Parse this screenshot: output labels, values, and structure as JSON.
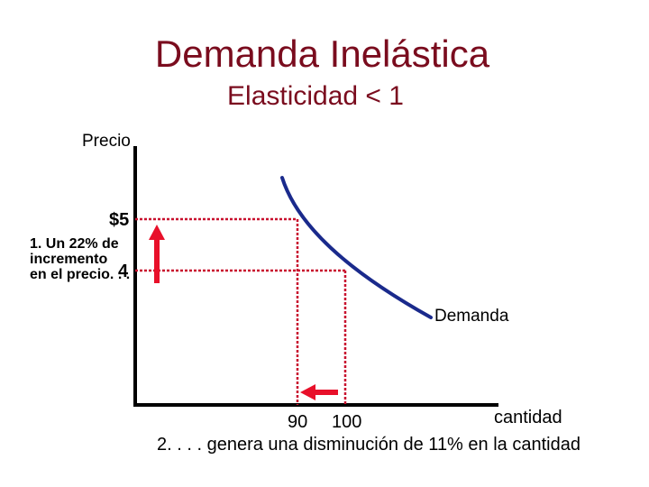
{
  "title": "Demanda Inelástica",
  "subtitle": "Elasticidad < 1",
  "axes": {
    "y_label": "Precio",
    "x_label": "cantidad"
  },
  "price_labels": {
    "high": "$5",
    "low": "4"
  },
  "quantity_labels": {
    "low": "90",
    "high": "100"
  },
  "curve_label": "Demanda",
  "annotations": {
    "price_change": "1. Un 22% de\nincremento\nen el precio. . .",
    "quantity_change": "2. . . . genera una disminución de 11% en la cantidad"
  },
  "colors": {
    "title": "#7a0c1e",
    "curve": "#1a2a8c",
    "guide_lines": "#c8102e",
    "arrows": "#e8102a",
    "axes": "#000000"
  },
  "icons": {
    "up_arrow": "arrow-up-icon",
    "left_arrow": "arrow-left-icon"
  }
}
